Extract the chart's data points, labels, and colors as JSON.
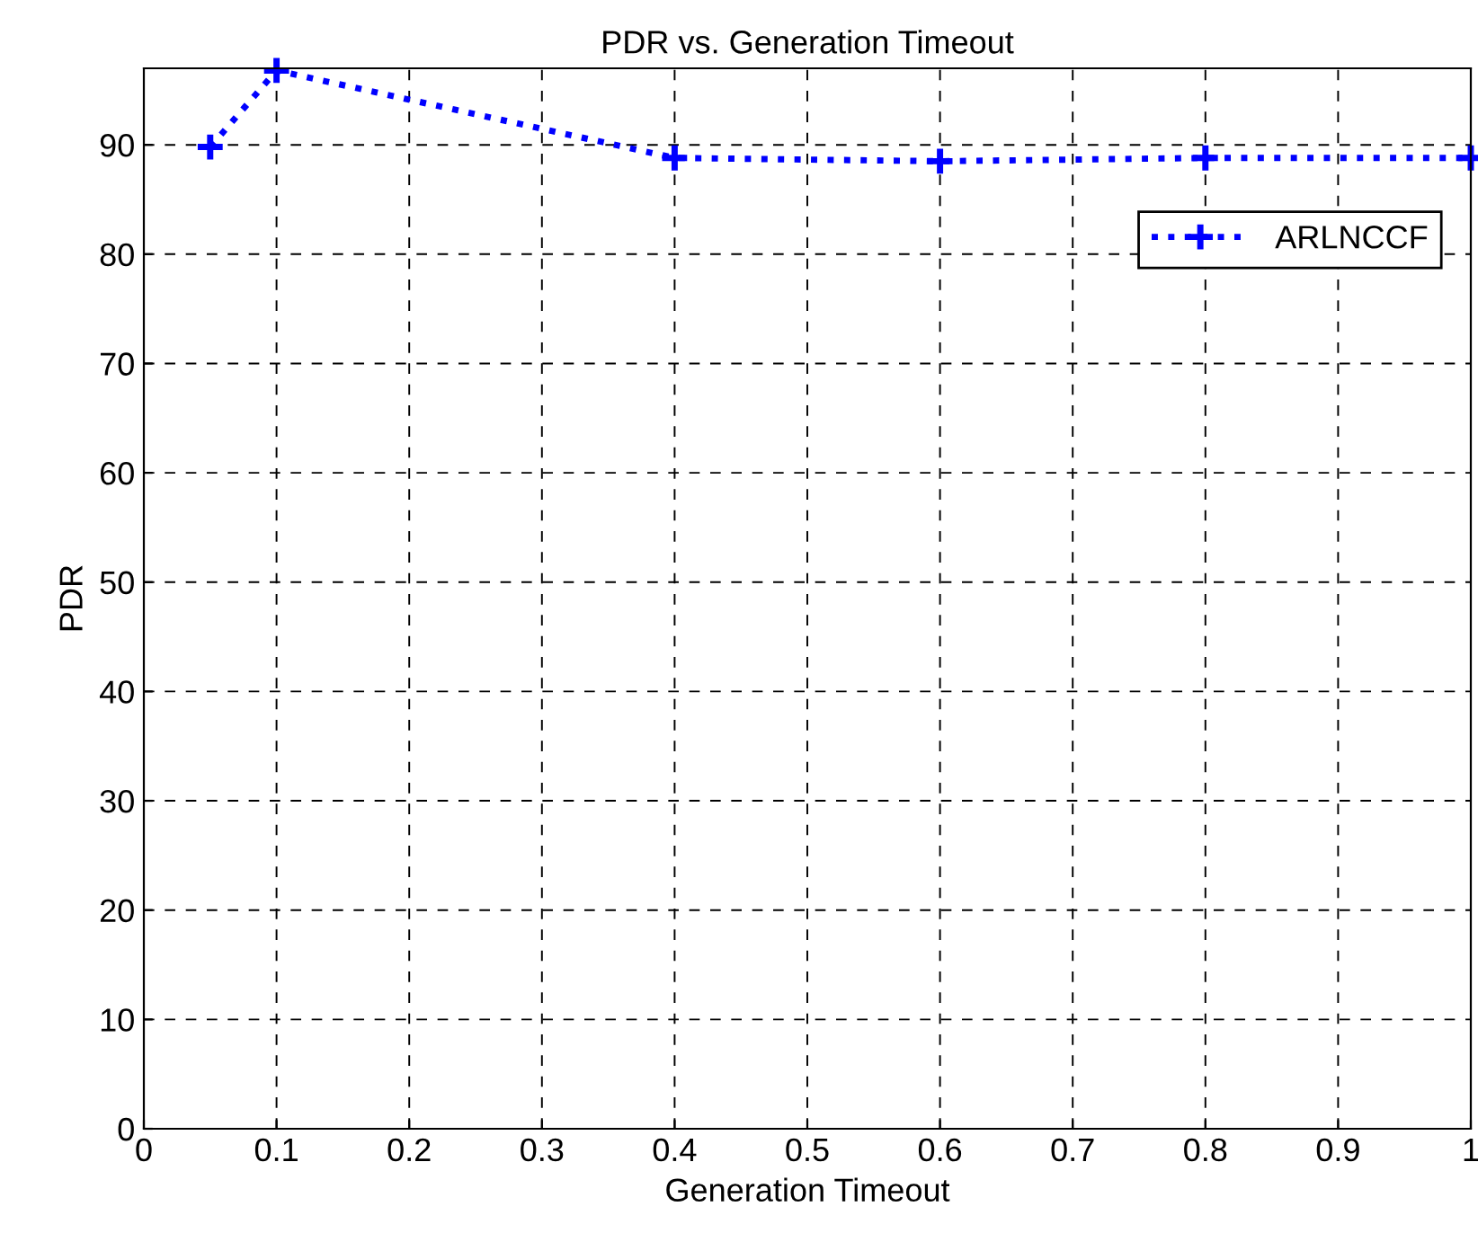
{
  "chart_data": {
    "type": "line",
    "title": "PDR vs. Generation Timeout",
    "xlabel": "Generation Timeout",
    "ylabel": "PDR",
    "x": [
      0.05,
      0.1,
      0.4,
      0.6,
      0.8,
      1.0
    ],
    "series": [
      {
        "name": "ARLNCCF",
        "color": "#0000ff",
        "values": [
          89.8,
          96.8,
          88.8,
          88.5,
          88.8,
          88.8
        ]
      }
    ],
    "xlim": [
      0,
      1
    ],
    "xticks": [
      0,
      0.1,
      0.2,
      0.3,
      0.4,
      0.5,
      0.6,
      0.7,
      0.8,
      0.9,
      1
    ],
    "ylim": [
      0,
      97
    ],
    "yticks": [
      0,
      10,
      20,
      30,
      40,
      50,
      60,
      70,
      80,
      90
    ],
    "grid": true,
    "legend": "top right",
    "marker": "cross",
    "line_style": "dotted"
  }
}
